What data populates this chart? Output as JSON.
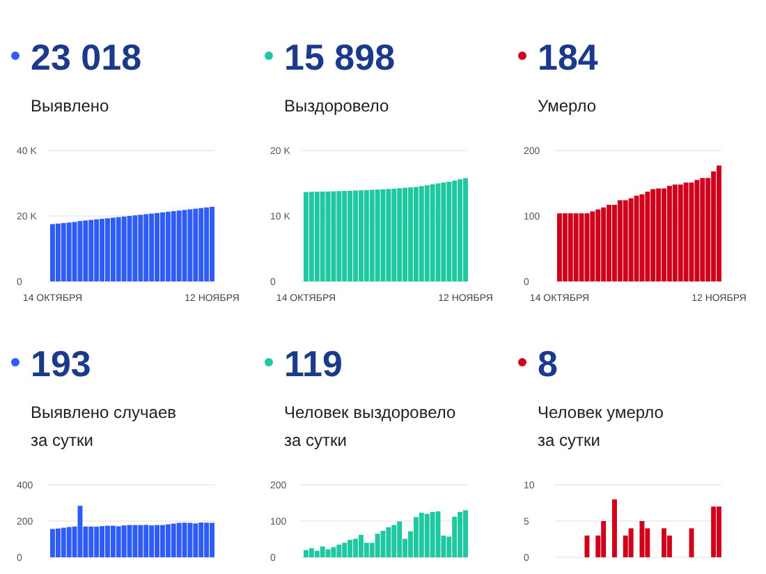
{
  "chart_data": [
    {
      "type": "bar",
      "title": "23 018",
      "subtitle": "Выявлено",
      "color": "#2f5cf5",
      "grid": "y",
      "categories": [
        "14 ОКТЯБРЯ",
        null,
        null,
        null,
        null,
        null,
        null,
        null,
        null,
        null,
        null,
        null,
        null,
        null,
        null,
        null,
        null,
        null,
        null,
        null,
        null,
        null,
        null,
        null,
        null,
        null,
        null,
        null,
        null,
        "12 НОЯБРЯ"
      ],
      "values": [
        17510,
        17670,
        17830,
        18000,
        18170,
        18450,
        18620,
        18790,
        18960,
        19130,
        19300,
        19470,
        19640,
        19820,
        20000,
        20180,
        20360,
        20540,
        20720,
        20900,
        21080,
        21270,
        21460,
        21650,
        21840,
        22030,
        22220,
        22410,
        22600,
        22790
      ],
      "ylim": [
        0,
        40000
      ],
      "yticks": [
        {
          "value": 0,
          "label": "0"
        },
        {
          "value": 20000,
          "label": "20 K"
        },
        {
          "value": 40000,
          "label": "40 K"
        }
      ]
    },
    {
      "type": "bar",
      "title": "15 898",
      "subtitle": "Выздоровело",
      "color": "#1fc8a0",
      "grid": "y",
      "categories": [
        "14 ОКТЯБРЯ",
        null,
        null,
        null,
        null,
        null,
        null,
        null,
        null,
        null,
        null,
        null,
        null,
        null,
        null,
        null,
        null,
        null,
        null,
        null,
        null,
        null,
        null,
        null,
        null,
        null,
        null,
        null,
        null,
        "12 НОЯБРЯ"
      ],
      "values": [
        13650,
        13680,
        13700,
        13720,
        13740,
        13760,
        13790,
        13820,
        13850,
        13880,
        13910,
        13950,
        13990,
        14030,
        14070,
        14120,
        14170,
        14230,
        14300,
        14360,
        14430,
        14560,
        14700,
        14840,
        14970,
        15100,
        15230,
        15400,
        15600,
        15780
      ],
      "ylim": [
        0,
        20000
      ],
      "yticks": [
        {
          "value": 0,
          "label": "0"
        },
        {
          "value": 10000,
          "label": "10 K"
        },
        {
          "value": 20000,
          "label": "20 K"
        }
      ]
    },
    {
      "type": "bar",
      "title": "184",
      "subtitle": "Умерло",
      "color": "#d0021b",
      "grid": "y",
      "categories": [
        "14 ОКТЯБРЯ",
        null,
        null,
        null,
        null,
        null,
        null,
        null,
        null,
        null,
        null,
        null,
        null,
        null,
        null,
        null,
        null,
        null,
        null,
        null,
        null,
        null,
        null,
        null,
        null,
        null,
        null,
        null,
        null,
        "12 НОЯБРЯ"
      ],
      "values": [
        104,
        104,
        104,
        104,
        104,
        104,
        107,
        110,
        113,
        117,
        117,
        124,
        124,
        127,
        131,
        133,
        137,
        141,
        142,
        142,
        146,
        148,
        148,
        151,
        151,
        155,
        158,
        158,
        168,
        177
      ],
      "ylim": [
        0,
        200
      ],
      "yticks": [
        0,
        100,
        200
      ]
    },
    {
      "type": "bar",
      "title": "193",
      "subtitle": "Выявлено случаев\nза сутки",
      "color": "#2f5cf5",
      "grid": "y",
      "categories": [
        null,
        null,
        null,
        null,
        null,
        null,
        null,
        null,
        null,
        null,
        null,
        null,
        null,
        null,
        null,
        null,
        null,
        null,
        null,
        null,
        null,
        null,
        null,
        null,
        null,
        null,
        null,
        null,
        null,
        null
      ],
      "values": [
        156,
        159,
        163,
        167,
        170,
        284,
        170,
        170,
        169,
        172,
        174,
        174,
        171,
        176,
        178,
        178,
        178,
        179,
        176,
        178,
        178,
        182,
        186,
        190,
        191,
        190,
        187,
        192,
        191,
        190
      ],
      "ylim": [
        0,
        400
      ],
      "yticks": [
        0,
        200,
        400
      ]
    },
    {
      "type": "bar",
      "title": "119",
      "subtitle": "Человек выздоровело\nза сутки",
      "color": "#1fc8a0",
      "grid": "y",
      "categories": [
        null,
        null,
        null,
        null,
        null,
        null,
        null,
        null,
        null,
        null,
        null,
        null,
        null,
        null,
        null,
        null,
        null,
        null,
        null,
        null,
        null,
        null,
        null,
        null,
        null,
        null,
        null,
        null,
        null,
        null
      ],
      "values": [
        20,
        25,
        18,
        30,
        22,
        28,
        35,
        40,
        48,
        51,
        62,
        40,
        40,
        65,
        73,
        83,
        89,
        99,
        51,
        72,
        111,
        123,
        120,
        125,
        127,
        60,
        57,
        112,
        125,
        130
      ],
      "ylim": [
        0,
        200
      ],
      "yticks": [
        0,
        100,
        200
      ]
    },
    {
      "type": "bar",
      "title": "8",
      "subtitle": "Человек умерло\nза сутки",
      "color": "#d0021b",
      "grid": "y",
      "categories": [
        null,
        null,
        null,
        null,
        null,
        null,
        null,
        null,
        null,
        null,
        null,
        null,
        null,
        null,
        null,
        null,
        null,
        null,
        null,
        null,
        null,
        null,
        null,
        null,
        null,
        null,
        null,
        null,
        null,
        null
      ],
      "values": [
        0,
        0,
        0,
        0,
        0,
        3,
        0,
        3,
        5,
        0,
        8,
        0,
        3,
        4,
        0,
        5,
        4,
        0,
        0,
        4,
        3,
        0,
        0,
        0,
        4,
        0,
        0,
        0,
        7,
        7
      ],
      "ylim": [
        0,
        10
      ],
      "yticks": [
        0,
        5,
        10
      ]
    }
  ]
}
